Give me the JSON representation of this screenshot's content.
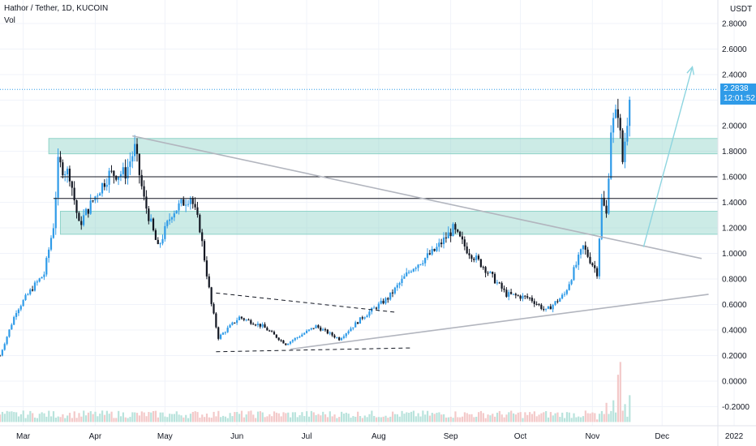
{
  "header": {
    "title": "Hathor / Tether, 1D, KUCOIN",
    "indicator": "Vol"
  },
  "price_tag": {
    "price": "2.2838",
    "countdown": "12:01:52"
  },
  "colors": {
    "up": "#2f9be8",
    "down": "#131722",
    "zone": "#8fd3c8",
    "trendline": "#b2b5be",
    "line": "#131722",
    "arrow": "#8ed5e0",
    "vol_up": "#b9e3dc",
    "vol_down": "#f3c9c9",
    "grid": "#f0f3fa"
  },
  "chart_data": {
    "type": "candlestick",
    "title": "Hathor / Tether, 1D, KUCOIN",
    "y_unit": "USDT",
    "ylim": [
      -0.3,
      2.95
    ],
    "y_ticks": [
      "2.8000",
      "2.6000",
      "2.4000",
      "2.2000",
      "2.0000",
      "1.8000",
      "1.6000",
      "1.4000",
      "1.2000",
      "1.0000",
      "0.8000",
      "0.6000",
      "0.4000",
      "0.2000",
      "0.0000",
      "-0.2000"
    ],
    "x_labels": [
      "Mar",
      "Apr",
      "May",
      "Jun",
      "Jul",
      "Aug",
      "Sep",
      "Oct",
      "Nov",
      "Dec",
      "2022"
    ],
    "x_range": [
      "2021-02-19",
      "2021-12-25"
    ],
    "price_path": [
      [
        "2021-02-19",
        0.2
      ],
      [
        "2021-02-26",
        0.55
      ],
      [
        "2021-03-05",
        0.73
      ],
      [
        "2021-03-10",
        0.84
      ],
      [
        "2021-03-14",
        1.22
      ],
      [
        "2021-03-16",
        1.7
      ],
      [
        "2021-03-21",
        1.62
      ],
      [
        "2021-03-25",
        1.22
      ],
      [
        "2021-04-02",
        1.48
      ],
      [
        "2021-04-07",
        1.62
      ],
      [
        "2021-04-14",
        1.63
      ],
      [
        "2021-04-18",
        1.82
      ],
      [
        "2021-04-22",
        1.42
      ],
      [
        "2021-04-28",
        1.04
      ],
      [
        "2021-05-04",
        1.32
      ],
      [
        "2021-05-12",
        1.45
      ],
      [
        "2021-05-16",
        1.2
      ],
      [
        "2021-05-21",
        0.6
      ],
      [
        "2021-05-24",
        0.34
      ],
      [
        "2021-06-02",
        0.5
      ],
      [
        "2021-06-12",
        0.43
      ],
      [
        "2021-06-22",
        0.29
      ],
      [
        "2021-07-05",
        0.43
      ],
      [
        "2021-07-15",
        0.33
      ],
      [
        "2021-07-25",
        0.5
      ],
      [
        "2021-08-05",
        0.65
      ],
      [
        "2021-08-15",
        0.88
      ],
      [
        "2021-08-25",
        1.02
      ],
      [
        "2021-09-02",
        1.19
      ],
      [
        "2021-09-08",
        1.03
      ],
      [
        "2021-09-15",
        0.9
      ],
      [
        "2021-09-25",
        0.68
      ],
      [
        "2021-10-05",
        0.65
      ],
      [
        "2021-10-12",
        0.55
      ],
      [
        "2021-10-20",
        0.68
      ],
      [
        "2021-10-28",
        1.05
      ],
      [
        "2021-11-03",
        0.85
      ],
      [
        "2021-11-05",
        1.42
      ],
      [
        "2021-11-07",
        1.3
      ],
      [
        "2021-11-09",
        1.98
      ],
      [
        "2021-11-12",
        2.12
      ],
      [
        "2021-11-14",
        1.72
      ],
      [
        "2021-11-16",
        2.05
      ],
      [
        "2021-11-17",
        2.28
      ]
    ],
    "volume_heights": [
      [
        "2021-11-03",
        0.02
      ],
      [
        "2021-11-07",
        0.15
      ],
      [
        "2021-11-10",
        0.17
      ],
      [
        "2021-11-12",
        0.37
      ],
      [
        "2021-11-13",
        0.47
      ],
      [
        "2021-11-15",
        0.14
      ],
      [
        "2021-11-17",
        0.21
      ]
    ],
    "horizontal_lines": [
      1.6,
      1.43
    ],
    "zones": [
      {
        "from": "2021-03-12",
        "to": "2021-12-25",
        "y0": 1.78,
        "y1": 1.9
      },
      {
        "from": "2021-03-17",
        "to": "2021-12-25",
        "y0": 1.15,
        "y1": 1.33
      }
    ],
    "trendlines": [
      {
        "style": "solid",
        "points": [
          [
            "2021-04-17",
            1.92
          ],
          [
            "2021-12-18",
            0.96
          ]
        ]
      },
      {
        "style": "solid",
        "points": [
          [
            "2021-06-24",
            0.25
          ],
          [
            "2021-12-21",
            0.68
          ]
        ]
      },
      {
        "style": "dashed",
        "points": [
          [
            "2021-05-23",
            0.69
          ],
          [
            "2021-08-08",
            0.54
          ]
        ]
      },
      {
        "style": "dashed",
        "points": [
          [
            "2021-05-23",
            0.23
          ],
          [
            "2021-08-15",
            0.26
          ]
        ]
      },
      {
        "style": "arrow",
        "points": [
          [
            "2021-11-23",
            1.05
          ],
          [
            "2021-12-14",
            2.46
          ]
        ]
      }
    ]
  }
}
